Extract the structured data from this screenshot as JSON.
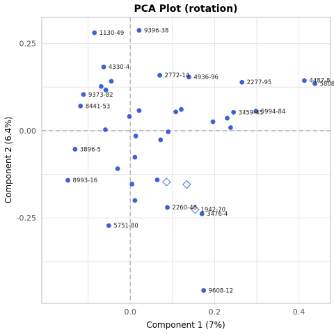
{
  "chart_data": {
    "type": "scatter",
    "title": "PCA Plot (rotation)",
    "xlabel": "Component 1 (7%)",
    "ylabel": "Component 2 (6.4%)",
    "xlim": [
      -0.21,
      0.475
    ],
    "ylim": [
      -0.495,
      0.325
    ],
    "xticks": [
      0.0,
      0.2,
      0.4
    ],
    "xtick_labels": [
      "0.0",
      "0.2",
      "0.4"
    ],
    "yticks": [
      0.25,
      0.0,
      -0.25
    ],
    "ytick_labels": [
      "0.25",
      "0.00",
      "-0.25"
    ],
    "grid": true,
    "zero_lines": true,
    "point_color": "#3a62d6",
    "diamond_color": "#4a6fd0",
    "points": [
      {
        "x": -0.085,
        "y": 0.281,
        "label": "1130-49"
      },
      {
        "x": 0.021,
        "y": 0.288,
        "label": "9396-38"
      },
      {
        "x": -0.063,
        "y": 0.183,
        "label": "4330-4"
      },
      {
        "x": -0.045,
        "y": 0.142,
        "label": ""
      },
      {
        "x": -0.069,
        "y": 0.127,
        "label": ""
      },
      {
        "x": -0.058,
        "y": 0.117,
        "label": ""
      },
      {
        "x": -0.111,
        "y": 0.104,
        "label": "9373-82"
      },
      {
        "x": -0.118,
        "y": 0.071,
        "label": "8441-53"
      },
      {
        "x": 0.07,
        "y": 0.159,
        "label": "2772-14"
      },
      {
        "x": 0.139,
        "y": 0.154,
        "label": "4936-96"
      },
      {
        "x": 0.265,
        "y": 0.139,
        "label": "2277-95"
      },
      {
        "x": 0.413,
        "y": 0.144,
        "label": "4487-8"
      },
      {
        "x": 0.438,
        "y": 0.135,
        "label": "5808"
      },
      {
        "x": -0.002,
        "y": 0.041,
        "label": ""
      },
      {
        "x": 0.021,
        "y": 0.058,
        "label": ""
      },
      {
        "x": 0.108,
        "y": 0.054,
        "label": ""
      },
      {
        "x": 0.121,
        "y": 0.061,
        "label": ""
      },
      {
        "x": 0.245,
        "y": 0.053,
        "label": "3459-45"
      },
      {
        "x": 0.298,
        "y": 0.056,
        "label": "5994-84"
      },
      {
        "x": 0.23,
        "y": 0.036,
        "label": ""
      },
      {
        "x": 0.196,
        "y": 0.026,
        "label": ""
      },
      {
        "x": 0.238,
        "y": 0.009,
        "label": ""
      },
      {
        "x": -0.059,
        "y": 0.003,
        "label": ""
      },
      {
        "x": 0.09,
        "y": -0.003,
        "label": ""
      },
      {
        "x": 0.013,
        "y": -0.015,
        "label": ""
      },
      {
        "x": 0.072,
        "y": -0.026,
        "label": ""
      },
      {
        "x": -0.131,
        "y": -0.053,
        "label": "3896-5"
      },
      {
        "x": 0.011,
        "y": -0.076,
        "label": ""
      },
      {
        "x": -0.03,
        "y": -0.109,
        "label": ""
      },
      {
        "x": -0.148,
        "y": -0.142,
        "label": "8993-16"
      },
      {
        "x": 0.064,
        "y": -0.141,
        "label": ""
      },
      {
        "x": 0.004,
        "y": -0.153,
        "label": ""
      },
      {
        "x": 0.011,
        "y": -0.2,
        "label": ""
      },
      {
        "x": 0.088,
        "y": -0.22,
        "label": "2260-48"
      },
      {
        "x": 0.17,
        "y": -0.238,
        "label": "3476-4"
      },
      {
        "x": -0.051,
        "y": -0.272,
        "label": "5751-80"
      },
      {
        "x": 0.174,
        "y": -0.458,
        "label": "9608-12"
      }
    ],
    "diamonds": [
      {
        "x": 0.086,
        "y": -0.147,
        "label": ""
      },
      {
        "x": 0.134,
        "y": -0.154,
        "label": ""
      },
      {
        "x": 0.154,
        "y": -0.226,
        "label": "1942-70"
      }
    ]
  }
}
